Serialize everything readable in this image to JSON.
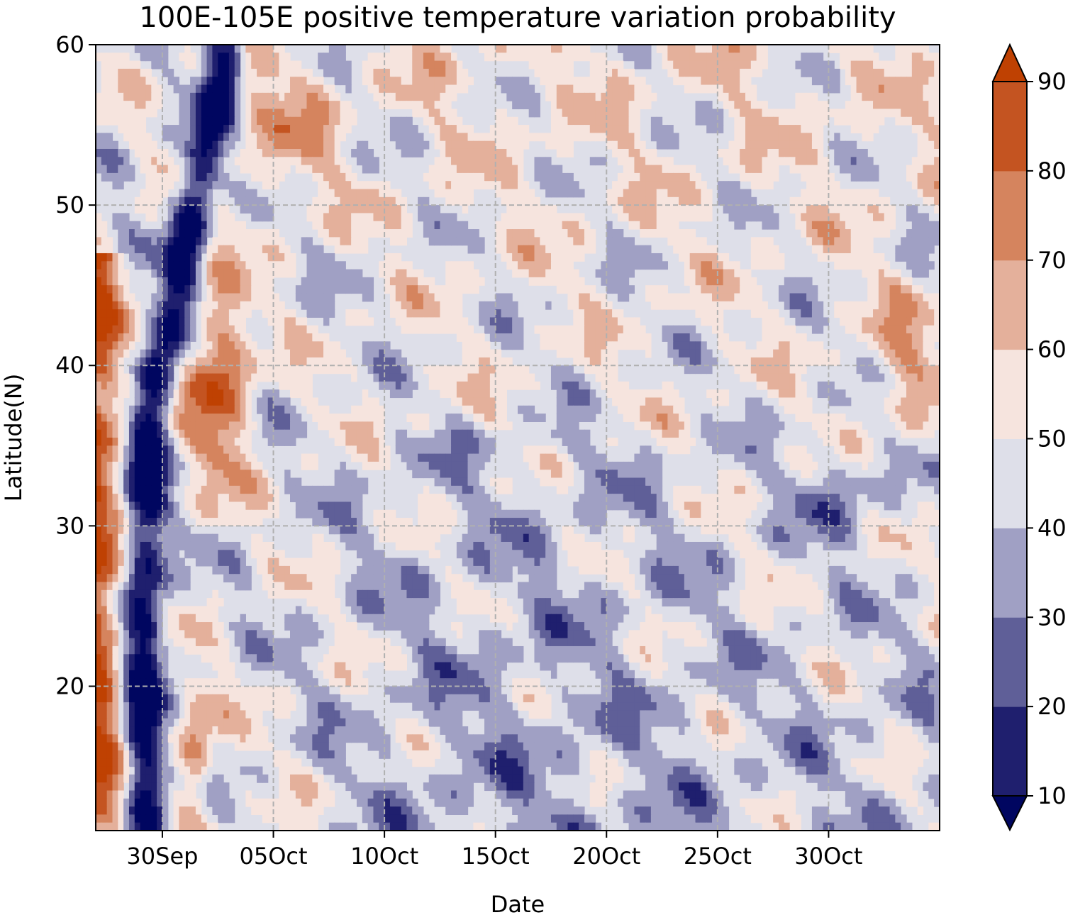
{
  "chart_data": {
    "type": "heatmap",
    "subtype": "filled-contour",
    "title": "100E-105E positive temperature variation probability",
    "xlabel": "Date",
    "ylabel": "Latitude(N)",
    "xlim": [
      "27Sep",
      "04Nov"
    ],
    "ylim": [
      11,
      60
    ],
    "x_ticks": [
      "30Sep",
      "05Oct",
      "10Oct",
      "15Oct",
      "20Oct",
      "25Oct",
      "30Oct"
    ],
    "x_tick_day_offsets": [
      3,
      8,
      13,
      18,
      23,
      28,
      33
    ],
    "x_day_span": 38,
    "y_ticks": [
      20,
      30,
      40,
      50,
      60
    ],
    "y_tick_labels": [
      "20",
      "30",
      "40",
      "50",
      "60"
    ],
    "grid": true,
    "colorbar": {
      "levels": [
        10,
        20,
        30,
        40,
        50,
        60,
        70,
        80,
        90
      ],
      "tick_labels": [
        "10",
        "20",
        "30",
        "40",
        "50",
        "60",
        "70",
        "80",
        "90"
      ],
      "extend": "both",
      "colors": [
        "#000660",
        "#1f1f6e",
        "#5f5f98",
        "#a0a0c4",
        "#dedfe9",
        "#f6e4de",
        "#e4b09b",
        "#d5845e",
        "#c45421",
        "#bf4102"
      ]
    },
    "field_description_by_region": [
      {
        "dates": "27Sep-30Sep",
        "latitudes": "11-60",
        "probability_range": [
          0,
          20
        ],
        "note": "low band (dark blue), drifting east toward 03Oct at 40-55N"
      },
      {
        "dates": "27Sep-29Sep",
        "latitudes": "11-45",
        "probability_range": [
          70,
          95
        ],
        "note": "high (dark orange) west edge"
      },
      {
        "dates": "01Oct-05Oct",
        "latitudes": "30-45",
        "probability_range": [
          80,
          95
        ],
        "note": "high (dark orange) core"
      },
      {
        "dates": "02Oct-10Oct",
        "latitudes": "48-60",
        "probability_range": [
          60,
          80
        ],
        "note": "moderately high"
      },
      {
        "dates": "05Oct-30Oct",
        "latitudes": "11-35",
        "probability_range": [
          20,
          50
        ],
        "note": "generally below 50, patches near 20-30"
      },
      {
        "dates": "10Oct-04Nov",
        "latitudes": "40-60",
        "probability_range": [
          50,
          70
        ],
        "note": "generally above 50"
      }
    ]
  }
}
